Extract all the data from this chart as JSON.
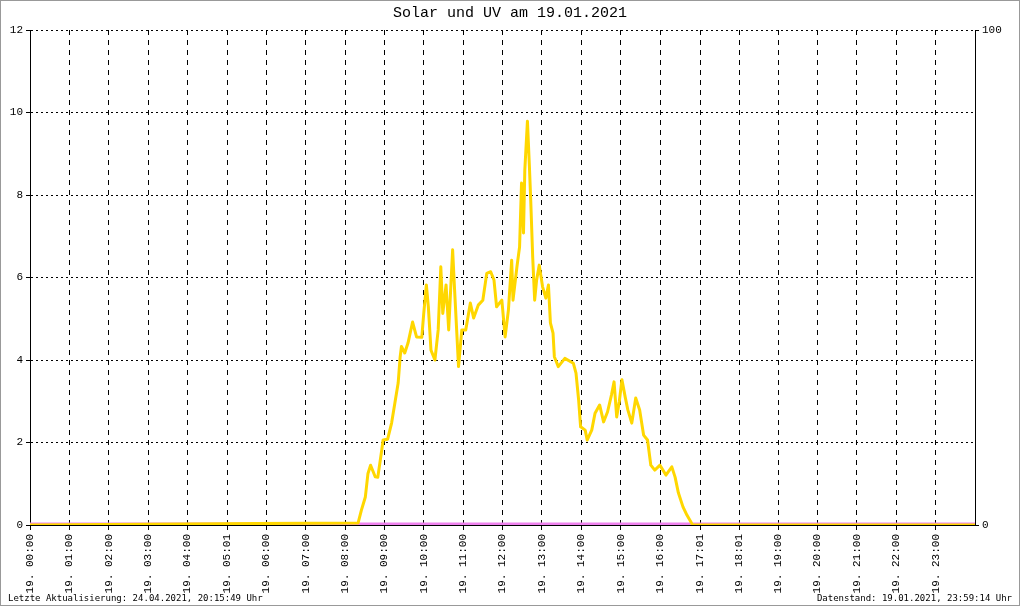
{
  "chart_data": {
    "type": "line",
    "title": "Solar und UV am 19.01.2021",
    "annotations": [
      "Letzte Aktualisierung: 24.04.2021, 20:15:49 Uhr",
      "Datenstand: 19.01.2021, 23:59:14 Uhr"
    ],
    "xlim": [
      "2021-01-19T00:00",
      "2021-01-20T00:00"
    ],
    "xticks": [
      {
        "value": "2021-01-19T00:00",
        "label": "19. 00:00"
      },
      {
        "value": "2021-01-19T01:00",
        "label": "19. 01:00"
      },
      {
        "value": "2021-01-19T02:00",
        "label": "19. 02:00"
      },
      {
        "value": "2021-01-19T03:00",
        "label": "19. 03:00"
      },
      {
        "value": "2021-01-19T04:00",
        "label": "19. 04:00"
      },
      {
        "value": "2021-01-19T05:01",
        "label": "19. 05:01"
      },
      {
        "value": "2021-01-19T06:00",
        "label": "19. 06:00"
      },
      {
        "value": "2021-01-19T07:00",
        "label": "19. 07:00"
      },
      {
        "value": "2021-01-19T08:00",
        "label": "19. 08:00"
      },
      {
        "value": "2021-01-19T09:00",
        "label": "19. 09:00"
      },
      {
        "value": "2021-01-19T10:00",
        "label": "19. 10:00"
      },
      {
        "value": "2021-01-19T11:00",
        "label": "19. 11:00"
      },
      {
        "value": "2021-01-19T12:00",
        "label": "19. 12:00"
      },
      {
        "value": "2021-01-19T13:00",
        "label": "19. 13:00"
      },
      {
        "value": "2021-01-19T14:00",
        "label": "19. 14:00"
      },
      {
        "value": "2021-01-19T15:00",
        "label": "19. 15:00"
      },
      {
        "value": "2021-01-19T16:00",
        "label": "19. 16:00"
      },
      {
        "value": "2021-01-19T17:01",
        "label": "19. 17:01"
      },
      {
        "value": "2021-01-19T18:01",
        "label": "19. 18:01"
      },
      {
        "value": "2021-01-19T19:00",
        "label": "19. 19:00"
      },
      {
        "value": "2021-01-19T20:00",
        "label": "19. 20:00"
      },
      {
        "value": "2021-01-19T21:00",
        "label": "19. 21:00"
      },
      {
        "value": "2021-01-19T22:00",
        "label": "19. 22:00"
      },
      {
        "value": "2021-01-19T23:00",
        "label": "19. 23:00"
      }
    ],
    "ylim": [
      0,
      12
    ],
    "yticks": [
      0,
      2,
      4,
      6,
      8,
      10,
      12
    ],
    "y2lim": [
      0,
      100
    ],
    "y2ticks": [
      0,
      100
    ],
    "grid": true,
    "marker": "none",
    "series": [
      {
        "color": "#ffd700",
        "x": [
          "2021-01-19T00:00",
          "2021-01-19T08:20",
          "2021-01-19T08:25",
          "2021-01-19T08:31",
          "2021-01-19T08:35",
          "2021-01-19T08:39",
          "2021-01-19T08:46",
          "2021-01-19T08:50",
          "2021-01-19T08:56",
          "2021-01-19T08:58",
          "2021-01-19T09:05",
          "2021-01-19T09:11",
          "2021-01-19T09:16",
          "2021-01-19T09:21",
          "2021-01-19T09:24",
          "2021-01-19T09:26",
          "2021-01-19T09:31",
          "2021-01-19T09:36",
          "2021-01-19T09:43",
          "2021-01-19T09:49",
          "2021-01-19T09:57",
          "2021-01-19T10:00",
          "2021-01-19T10:04",
          "2021-01-19T10:07",
          "2021-01-19T10:11",
          "2021-01-19T10:17",
          "2021-01-19T10:22",
          "2021-01-19T10:26",
          "2021-01-19T10:29",
          "2021-01-19T10:34",
          "2021-01-19T10:38",
          "2021-01-19T10:44",
          "2021-01-19T10:47",
          "2021-01-19T10:53",
          "2021-01-19T10:58",
          "2021-01-19T11:04",
          "2021-01-19T11:11",
          "2021-01-19T11:16",
          "2021-01-19T11:23",
          "2021-01-19T11:30",
          "2021-01-19T11:36",
          "2021-01-19T11:42",
          "2021-01-19T11:47",
          "2021-01-19T11:51",
          "2021-01-19T11:59",
          "2021-01-19T12:04",
          "2021-01-19T12:09",
          "2021-01-19T12:14",
          "2021-01-19T12:16",
          "2021-01-19T12:22",
          "2021-01-19T12:26",
          "2021-01-19T12:29",
          "2021-01-19T12:32",
          "2021-01-19T12:34",
          "2021-01-19T12:38",
          "2021-01-19T12:41",
          "2021-01-19T12:43",
          "2021-01-19T12:46",
          "2021-01-19T12:49",
          "2021-01-19T12:52",
          "2021-01-19T12:56",
          "2021-01-19T13:01",
          "2021-01-19T13:06",
          "2021-01-19T13:10",
          "2021-01-19T13:13",
          "2021-01-19T13:17",
          "2021-01-19T13:19",
          "2021-01-19T13:25",
          "2021-01-19T13:35",
          "2021-01-19T13:48",
          "2021-01-19T13:52",
          "2021-01-19T13:56",
          "2021-01-19T13:59",
          "2021-01-19T14:06",
          "2021-01-19T14:09",
          "2021-01-19T14:16",
          "2021-01-19T14:21",
          "2021-01-19T14:28",
          "2021-01-19T14:34",
          "2021-01-19T14:40",
          "2021-01-19T14:46",
          "2021-01-19T14:50",
          "2021-01-19T14:54",
          "2021-01-19T14:58",
          "2021-01-19T15:02",
          "2021-01-19T15:07",
          "2021-01-19T15:11",
          "2021-01-19T15:17",
          "2021-01-19T15:23",
          "2021-01-19T15:29",
          "2021-01-19T15:35",
          "2021-01-19T15:41",
          "2021-01-19T15:46",
          "2021-01-19T15:52",
          "2021-01-19T16:00",
          "2021-01-19T16:09",
          "2021-01-19T16:18",
          "2021-01-19T16:23",
          "2021-01-19T16:28",
          "2021-01-19T16:35",
          "2021-01-19T16:41",
          "2021-01-19T16:48",
          "2021-01-19T16:50",
          "2021-01-20T00:00"
        ],
        "values": [
          0,
          0.05,
          0.36,
          0.68,
          1.25,
          1.45,
          1.17,
          1.16,
          1.82,
          2.06,
          2.08,
          2.47,
          2.96,
          3.44,
          4.07,
          4.33,
          4.17,
          4.41,
          4.92,
          4.56,
          4.55,
          5.13,
          5.82,
          5.29,
          4.24,
          4.0,
          4.73,
          6.26,
          5.13,
          5.82,
          4.73,
          6.67,
          5.7,
          3.84,
          4.73,
          4.73,
          5.38,
          5.02,
          5.33,
          5.45,
          6.1,
          6.14,
          5.94,
          5.29,
          5.45,
          4.56,
          5.21,
          6.42,
          5.45,
          6.26,
          6.74,
          8.29,
          7.08,
          8.61,
          9.79,
          8.69,
          7.88,
          6.5,
          5.45,
          5.94,
          6.3,
          5.78,
          5.5,
          5.82,
          4.9,
          4.65,
          4.08,
          3.84,
          4.04,
          3.92,
          3.68,
          3.03,
          2.38,
          2.3,
          2.06,
          2.3,
          2.71,
          2.91,
          2.5,
          2.74,
          3.15,
          3.47,
          2.62,
          3.0,
          3.52,
          3.1,
          2.79,
          2.47,
          3.08,
          2.79,
          2.18,
          2.06,
          1.45,
          1.33,
          1.45,
          1.21,
          1.41,
          1.16,
          0.78,
          0.44,
          0.24,
          0.05,
          0,
          0
        ]
      },
      {
        "color": "#ee82ee",
        "axis": "y2",
        "x": [
          "2021-01-19T00:00",
          "2021-01-20T00:00"
        ],
        "values": [
          0,
          0
        ]
      }
    ]
  }
}
